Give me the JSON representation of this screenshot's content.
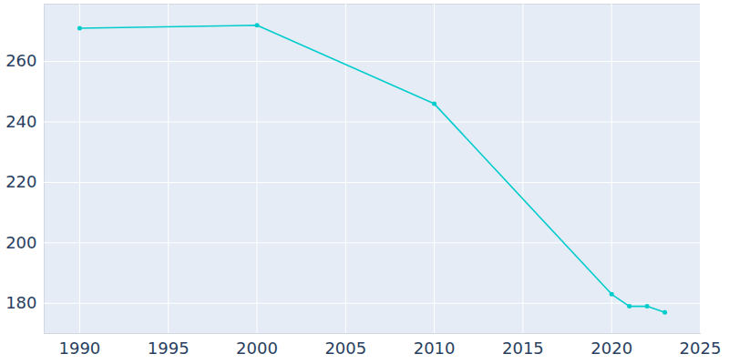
{
  "chart_data": {
    "type": "line",
    "x": [
      1990,
      2000,
      2010,
      2020,
      2021,
      2022,
      2023
    ],
    "values": [
      271,
      272,
      246,
      183,
      179,
      179,
      177
    ],
    "color": "#00cccc",
    "marker": "circle",
    "xlim": [
      1988,
      2025
    ],
    "xticks": [
      1990,
      1995,
      2000,
      2005,
      2010,
      2015,
      2020,
      2025
    ],
    "ylim": [
      170,
      279
    ],
    "yticks": [
      180,
      200,
      220,
      240,
      260
    ],
    "grid": true
  }
}
